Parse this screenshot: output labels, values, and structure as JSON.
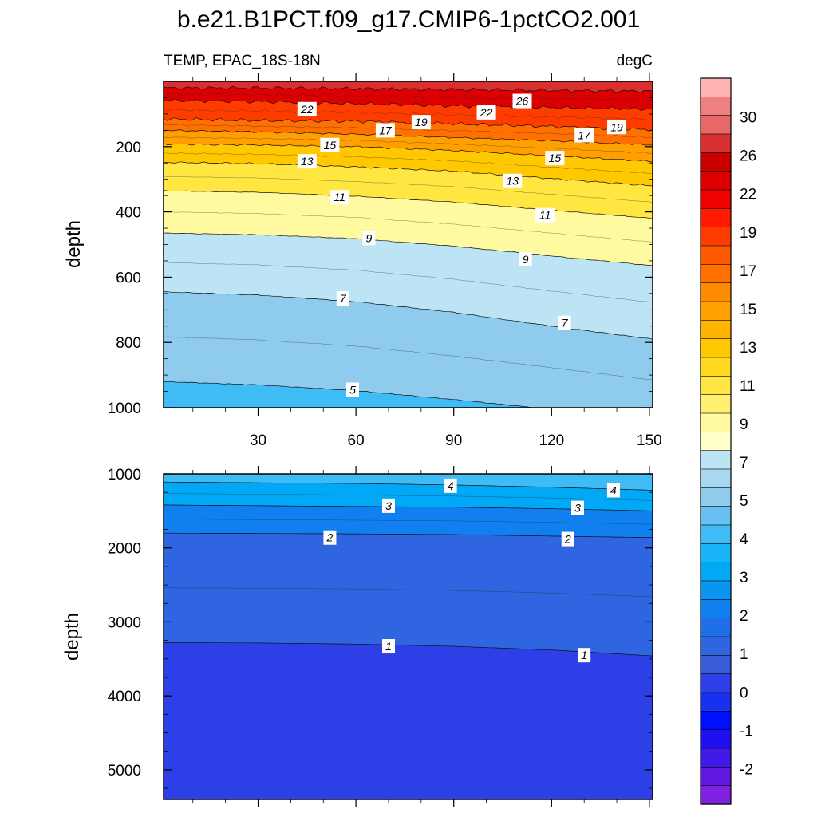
{
  "chart_data": {
    "type": "contour",
    "title": "b.e21.B1PCT.f09_g17.CMIP6-1pctCO2.001",
    "left_label": "TEMP, EPAC_18S-18N",
    "right_label": "degC",
    "x": {
      "range": [
        1,
        151
      ],
      "ticks": [
        30,
        60,
        90,
        120,
        150
      ],
      "tick_labels": [
        "30",
        "60",
        "90",
        "120",
        "150"
      ]
    },
    "panels": [
      {
        "ylabel": "depth",
        "ylim": [
          0,
          1000
        ],
        "yticks": [
          200,
          400,
          600,
          800,
          1000
        ],
        "ytick_labels": [
          "200",
          "400",
          "600",
          "800",
          "1000"
        ],
        "isotherm_depths": {
          "x": [
            1,
            30,
            60,
            90,
            120,
            151
          ],
          "levels": [
            {
              "t": 26,
              "d": [
                20,
                20,
                22,
                25,
                28,
                30
              ]
            },
            {
              "t": 22,
              "d": [
                58,
                62,
                68,
                75,
                80,
                85
              ]
            },
            {
              "t": 19,
              "d": [
                115,
                120,
                122,
                130,
                138,
                148
              ]
            },
            {
              "t": 17,
              "d": [
                150,
                155,
                162,
                172,
                182,
                195
              ]
            },
            {
              "t": 15,
              "d": [
                192,
                195,
                200,
                212,
                228,
                245
              ]
            },
            {
              "t": 13,
              "d": [
                248,
                252,
                262,
                275,
                298,
                320
              ]
            },
            {
              "t": 11,
              "d": [
                335,
                340,
                352,
                370,
                395,
                420
              ]
            },
            {
              "t": 9,
              "d": [
                465,
                470,
                482,
                505,
                535,
                565
              ]
            },
            {
              "t": 7,
              "d": [
                645,
                655,
                675,
                708,
                750,
                790
              ]
            },
            {
              "t": 5,
              "d": [
                920,
                930,
                948,
                975,
                1005,
                1040
              ]
            }
          ]
        },
        "contour_labels": [
          {
            "t": 26,
            "x": 111,
            "d": 60
          },
          {
            "t": 22,
            "x": 45,
            "d": 85
          },
          {
            "t": 22,
            "x": 100,
            "d": 95
          },
          {
            "t": 19,
            "x": 80,
            "d": 125
          },
          {
            "t": 19,
            "x": 140,
            "d": 140
          },
          {
            "t": 17,
            "x": 69,
            "d": 150
          },
          {
            "t": 17,
            "x": 130,
            "d": 165
          },
          {
            "t": 15,
            "x": 52,
            "d": 195
          },
          {
            "t": 15,
            "x": 121,
            "d": 235
          },
          {
            "t": 13,
            "x": 45,
            "d": 245
          },
          {
            "t": 13,
            "x": 108,
            "d": 305
          },
          {
            "t": 11,
            "x": 55,
            "d": 355
          },
          {
            "t": 11,
            "x": 118,
            "d": 410
          },
          {
            "t": 9,
            "x": 64,
            "d": 480
          },
          {
            "t": 9,
            "x": 112,
            "d": 545
          },
          {
            "t": 7,
            "x": 56,
            "d": 665
          },
          {
            "t": 7,
            "x": 124,
            "d": 740
          },
          {
            "t": 5,
            "x": 59,
            "d": 945
          }
        ]
      },
      {
        "ylabel": "depth",
        "ylim": [
          1000,
          5400
        ],
        "yticks": [
          1000,
          2000,
          3000,
          4000,
          5000
        ],
        "ytick_labels": [
          "1000",
          "2000",
          "3000",
          "4000",
          "5000"
        ],
        "isotherm_depths": {
          "x": [
            1,
            30,
            60,
            90,
            120,
            151
          ],
          "levels": [
            {
              "t": 4,
              "d": [
                1110,
                1120,
                1130,
                1150,
                1180,
                1220
              ]
            },
            {
              "t": 3,
              "d": [
                1420,
                1430,
                1440,
                1450,
                1470,
                1500
              ]
            },
            {
              "t": 2,
              "d": [
                1800,
                1805,
                1810,
                1820,
                1840,
                1860
              ]
            },
            {
              "t": 1,
              "d": [
                3280,
                3285,
                3300,
                3330,
                3380,
                3460
              ]
            }
          ]
        },
        "contour_labels": [
          {
            "t": 4,
            "x": 89,
            "d": 1160
          },
          {
            "t": 4,
            "x": 139,
            "d": 1220
          },
          {
            "t": 3,
            "x": 70,
            "d": 1430
          },
          {
            "t": 3,
            "x": 128,
            "d": 1460
          },
          {
            "t": 2,
            "x": 52,
            "d": 1860
          },
          {
            "t": 2,
            "x": 125,
            "d": 1880
          },
          {
            "t": 1,
            "x": 70,
            "d": 3330
          },
          {
            "t": 1,
            "x": 130,
            "d": 3450
          }
        ]
      }
    ],
    "colorbar": {
      "labels": [
        "30",
        "26",
        "22",
        "19",
        "17",
        "15",
        "13",
        "11",
        "9",
        "7",
        "5",
        "4",
        "3",
        "2",
        "1",
        "0",
        "-1",
        "-2"
      ],
      "colors_top_to_bottom": [
        "#ffb3b3",
        "#f08080",
        "#e86868",
        "#d83030",
        "#c80000",
        "#dc0000",
        "#f00000",
        "#ff1a00",
        "#ff3c00",
        "#ff5a00",
        "#ff7000",
        "#ff8c00",
        "#ffa000",
        "#ffb400",
        "#ffc800",
        "#ffd820",
        "#ffe640",
        "#fff070",
        "#fffaa0",
        "#ffffcc",
        "#bde4f5",
        "#a8d8f0",
        "#8fcbec",
        "#66c0f0",
        "#3fbbf5",
        "#18b4f8",
        "#00a8f5",
        "#0a95f0",
        "#1080f0",
        "#1f70e8",
        "#2f65e0",
        "#3a5cd8",
        "#2d40e8",
        "#1830f0",
        "#0010ff",
        "#2010f0",
        "#4018e8",
        "#6018e0",
        "#8020e0"
      ]
    }
  }
}
